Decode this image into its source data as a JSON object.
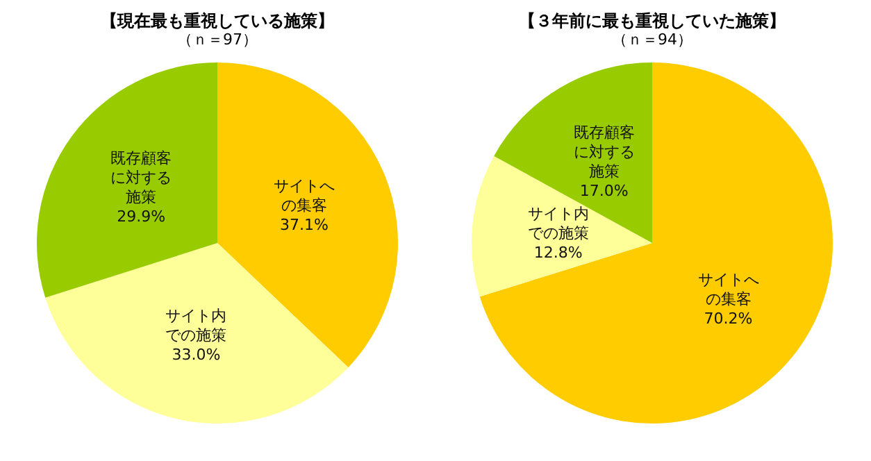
{
  "chart_data": [
    {
      "type": "pie",
      "title": "【現在最も重視している施策】",
      "subtitle": "（ｎ＝97）",
      "categories": [
        "サイトへの集客",
        "サイト内での施策",
        "既存顧客に対する施策"
      ],
      "values": [
        37.1,
        33.0,
        29.9
      ],
      "colors": [
        "#ffcc00",
        "#ffff99",
        "#99cc00"
      ],
      "value_labels": [
        "37.1%",
        "33.0%",
        "29.9%"
      ]
    },
    {
      "type": "pie",
      "title": "【３年前に最も重視していた施策】",
      "subtitle": "（ｎ＝94）",
      "categories": [
        "サイトへの集客",
        "サイト内での施策",
        "既存顧客に対する施策"
      ],
      "values": [
        70.2,
        12.8,
        17.0
      ],
      "colors": [
        "#ffcc00",
        "#ffff99",
        "#99cc00"
      ],
      "value_labels": [
        "70.2%",
        "12.8%",
        "17.0%"
      ]
    }
  ]
}
